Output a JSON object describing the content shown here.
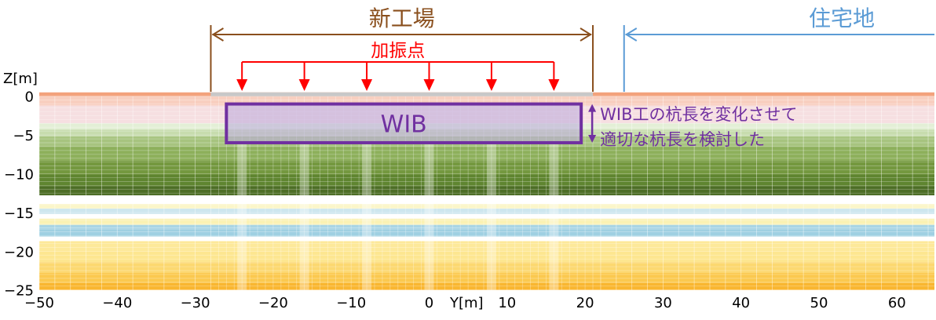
{
  "labels": {
    "new_factory": "新工場",
    "residential": "住宅地",
    "excitation_points": "加振点",
    "wib": "WIB",
    "note_line1": "WIB工の杭長を変化させて",
    "note_line2": "適切な杭長を検討した"
  },
  "axes": {
    "z_label": "Z[m]",
    "y_label": "Y[m]",
    "y_ticks": [
      "−50",
      "−40",
      "−30",
      "−20",
      "−10",
      "0",
      "10",
      "20",
      "30",
      "40",
      "50",
      "60"
    ],
    "y_tick_values": [
      -50,
      -40,
      -30,
      -20,
      -10,
      0,
      10,
      20,
      30,
      40,
      50,
      60
    ],
    "z_ticks": [
      "0",
      "−5",
      "−10",
      "−15",
      "−20",
      "−25"
    ],
    "z_tick_values": [
      0,
      -5,
      -10,
      -15,
      -20,
      -25
    ],
    "y_range": [
      -50,
      65
    ],
    "z_range": [
      -25,
      0.5
    ]
  },
  "model": {
    "factory_span": [
      -28,
      21
    ],
    "residential_start": 25,
    "excitation_y": [
      -24,
      -16,
      -8,
      0,
      8,
      16
    ],
    "wib_y": [
      -26,
      19.5
    ],
    "wib_z": [
      -1,
      -6
    ]
  },
  "colors": {
    "factory": "#8a4f1d",
    "residential": "#5b9bd5",
    "excitation": "#ff0000",
    "wib": "#7030a0",
    "wib_fill": "#b9a8dc"
  },
  "layers": [
    {
      "top": 0.5,
      "bottom": 0,
      "color": "#f3a27c"
    },
    {
      "top": 0,
      "bottom": -1.2,
      "color": "#f8cfc0"
    },
    {
      "top": -1.2,
      "bottom": -3.5,
      "color": "#f6dfe1"
    },
    {
      "top": -3.5,
      "bottom": -4.3,
      "color": "#e3efd6"
    },
    {
      "top": -4.3,
      "bottom": -5.2,
      "color": "#c7dcae"
    },
    {
      "top": -5.2,
      "bottom": -6.5,
      "color": "#a7c47f"
    },
    {
      "top": -6.5,
      "bottom": -8.3,
      "color": "#8db05b"
    },
    {
      "top": -8.3,
      "bottom": -10.1,
      "color": "#74983f"
    },
    {
      "top": -10.1,
      "bottom": -11.6,
      "color": "#5f8530"
    },
    {
      "top": -11.6,
      "bottom": -12.8,
      "color": "#4d6e26"
    },
    {
      "top": -12.8,
      "bottom": -13.9,
      "color": "#ffffff"
    },
    {
      "top": -13.9,
      "bottom": -14.5,
      "color": "#fbf6c9"
    },
    {
      "top": -14.5,
      "bottom": -15.2,
      "color": "#cde6ee"
    },
    {
      "top": -15.2,
      "bottom": -15.8,
      "color": "#ffffff"
    },
    {
      "top": -15.8,
      "bottom": -16.6,
      "color": "#fbf2b4"
    },
    {
      "top": -16.6,
      "bottom": -17.2,
      "color": "#a9d5e5"
    },
    {
      "top": -17.2,
      "bottom": -18.1,
      "color": "#9fd0e2"
    },
    {
      "top": -18.1,
      "bottom": -18.7,
      "color": "#ffffff"
    },
    {
      "top": -18.7,
      "bottom": -20.0,
      "color": "#fde99a"
    },
    {
      "top": -20.0,
      "bottom": -21.4,
      "color": "#fde690"
    },
    {
      "top": -21.4,
      "bottom": -22.8,
      "color": "#fcd870"
    },
    {
      "top": -22.8,
      "bottom": -24.1,
      "color": "#fbc94f"
    },
    {
      "top": -24.1,
      "bottom": -25.0,
      "color": "#f9b630"
    }
  ]
}
